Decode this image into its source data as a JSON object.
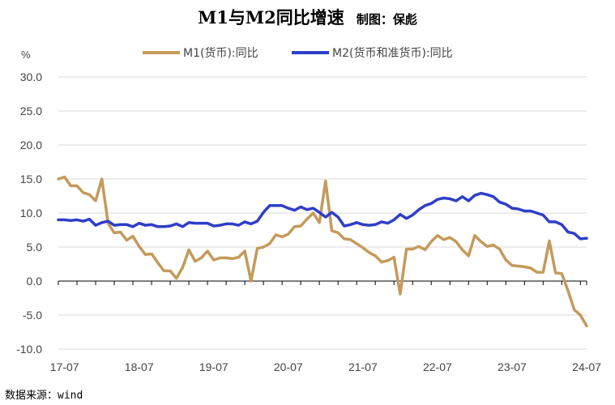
{
  "chart_data": {
    "type": "line",
    "title": "M1与M2同比增速",
    "subtitle": "制图：保彪",
    "ylabel": "%",
    "source": "数据来源：wind",
    "ylim": [
      -10,
      30
    ],
    "yticks": [
      "30.0",
      "25.0",
      "20.0",
      "15.0",
      "10.0",
      "5.0",
      "0.0",
      "-5.0",
      "-10.0"
    ],
    "xtick_labels": [
      "17-07",
      "18-07",
      "19-07",
      "20-07",
      "21-07",
      "22-07",
      "23-07",
      "24-07"
    ],
    "grid": "horizontal",
    "legend_position": "top-center",
    "x": [
      "2017-06",
      "2017-07",
      "2017-08",
      "2017-09",
      "2017-10",
      "2017-11",
      "2017-12",
      "2018-01",
      "2018-02",
      "2018-03",
      "2018-04",
      "2018-05",
      "2018-06",
      "2018-07",
      "2018-08",
      "2018-09",
      "2018-10",
      "2018-11",
      "2018-12",
      "2019-01",
      "2019-02",
      "2019-03",
      "2019-04",
      "2019-05",
      "2019-06",
      "2019-07",
      "2019-08",
      "2019-09",
      "2019-10",
      "2019-11",
      "2019-12",
      "2020-01",
      "2020-02",
      "2020-03",
      "2020-04",
      "2020-05",
      "2020-06",
      "2020-07",
      "2020-08",
      "2020-09",
      "2020-10",
      "2020-11",
      "2020-12",
      "2021-01",
      "2021-02",
      "2021-03",
      "2021-04",
      "2021-05",
      "2021-06",
      "2021-07",
      "2021-08",
      "2021-09",
      "2021-10",
      "2021-11",
      "2021-12",
      "2022-01",
      "2022-02",
      "2022-03",
      "2022-04",
      "2022-05",
      "2022-06",
      "2022-07",
      "2022-08",
      "2022-09",
      "2022-10",
      "2022-11",
      "2022-12",
      "2023-01",
      "2023-02",
      "2023-03",
      "2023-04",
      "2023-05",
      "2023-06",
      "2023-07",
      "2023-08",
      "2023-09",
      "2023-10",
      "2023-11",
      "2023-12",
      "2024-01",
      "2024-02",
      "2024-03",
      "2024-04",
      "2024-05",
      "2024-06",
      "2024-07"
    ],
    "series": [
      {
        "name": "M1(货币):同比",
        "color": "#C49A5C",
        "values": [
          15.0,
          15.3,
          14.0,
          14.0,
          13.0,
          12.7,
          11.8,
          15.0,
          8.5,
          7.1,
          7.2,
          6.0,
          6.6,
          5.1,
          3.9,
          4.0,
          2.7,
          1.5,
          1.5,
          0.4,
          2.0,
          4.6,
          2.9,
          3.4,
          4.4,
          3.1,
          3.4,
          3.4,
          3.3,
          3.5,
          4.4,
          0.0,
          4.8,
          5.0,
          5.5,
          6.8,
          6.5,
          6.9,
          8.0,
          8.1,
          9.1,
          10.0,
          8.6,
          14.7,
          7.4,
          7.1,
          6.2,
          6.1,
          5.5,
          4.9,
          4.2,
          3.7,
          2.8,
          3.0,
          3.5,
          -1.9,
          4.7,
          4.7,
          5.1,
          4.6,
          5.8,
          6.7,
          6.1,
          6.4,
          5.8,
          4.6,
          3.7,
          6.7,
          5.8,
          5.1,
          5.3,
          4.7,
          3.1,
          2.3,
          2.2,
          2.1,
          1.9,
          1.3,
          1.3,
          5.9,
          1.2,
          1.1,
          -1.4,
          -4.2,
          -5.0,
          -6.6
        ]
      },
      {
        "name": "M2(货币和准货币):同比",
        "color": "#2E3FC7",
        "values": [
          9.0,
          9.0,
          8.9,
          9.0,
          8.8,
          9.1,
          8.2,
          8.6,
          8.8,
          8.2,
          8.3,
          8.3,
          8.0,
          8.5,
          8.2,
          8.3,
          8.0,
          8.0,
          8.1,
          8.4,
          8.0,
          8.6,
          8.5,
          8.5,
          8.5,
          8.1,
          8.2,
          8.4,
          8.4,
          8.2,
          8.7,
          8.4,
          8.8,
          10.1,
          11.1,
          11.1,
          11.1,
          10.7,
          10.4,
          10.9,
          10.5,
          10.7,
          10.1,
          9.4,
          10.1,
          9.4,
          8.1,
          8.3,
          8.6,
          8.3,
          8.2,
          8.3,
          8.7,
          8.5,
          9.0,
          9.8,
          9.2,
          9.7,
          10.5,
          11.1,
          11.4,
          12.0,
          12.2,
          12.1,
          11.8,
          12.4,
          11.8,
          12.6,
          12.9,
          12.7,
          12.4,
          11.6,
          11.3,
          10.7,
          10.6,
          10.3,
          10.3,
          10.0,
          9.7,
          8.7,
          8.7,
          8.3,
          7.2,
          7.0,
          6.2,
          6.3
        ]
      }
    ]
  }
}
